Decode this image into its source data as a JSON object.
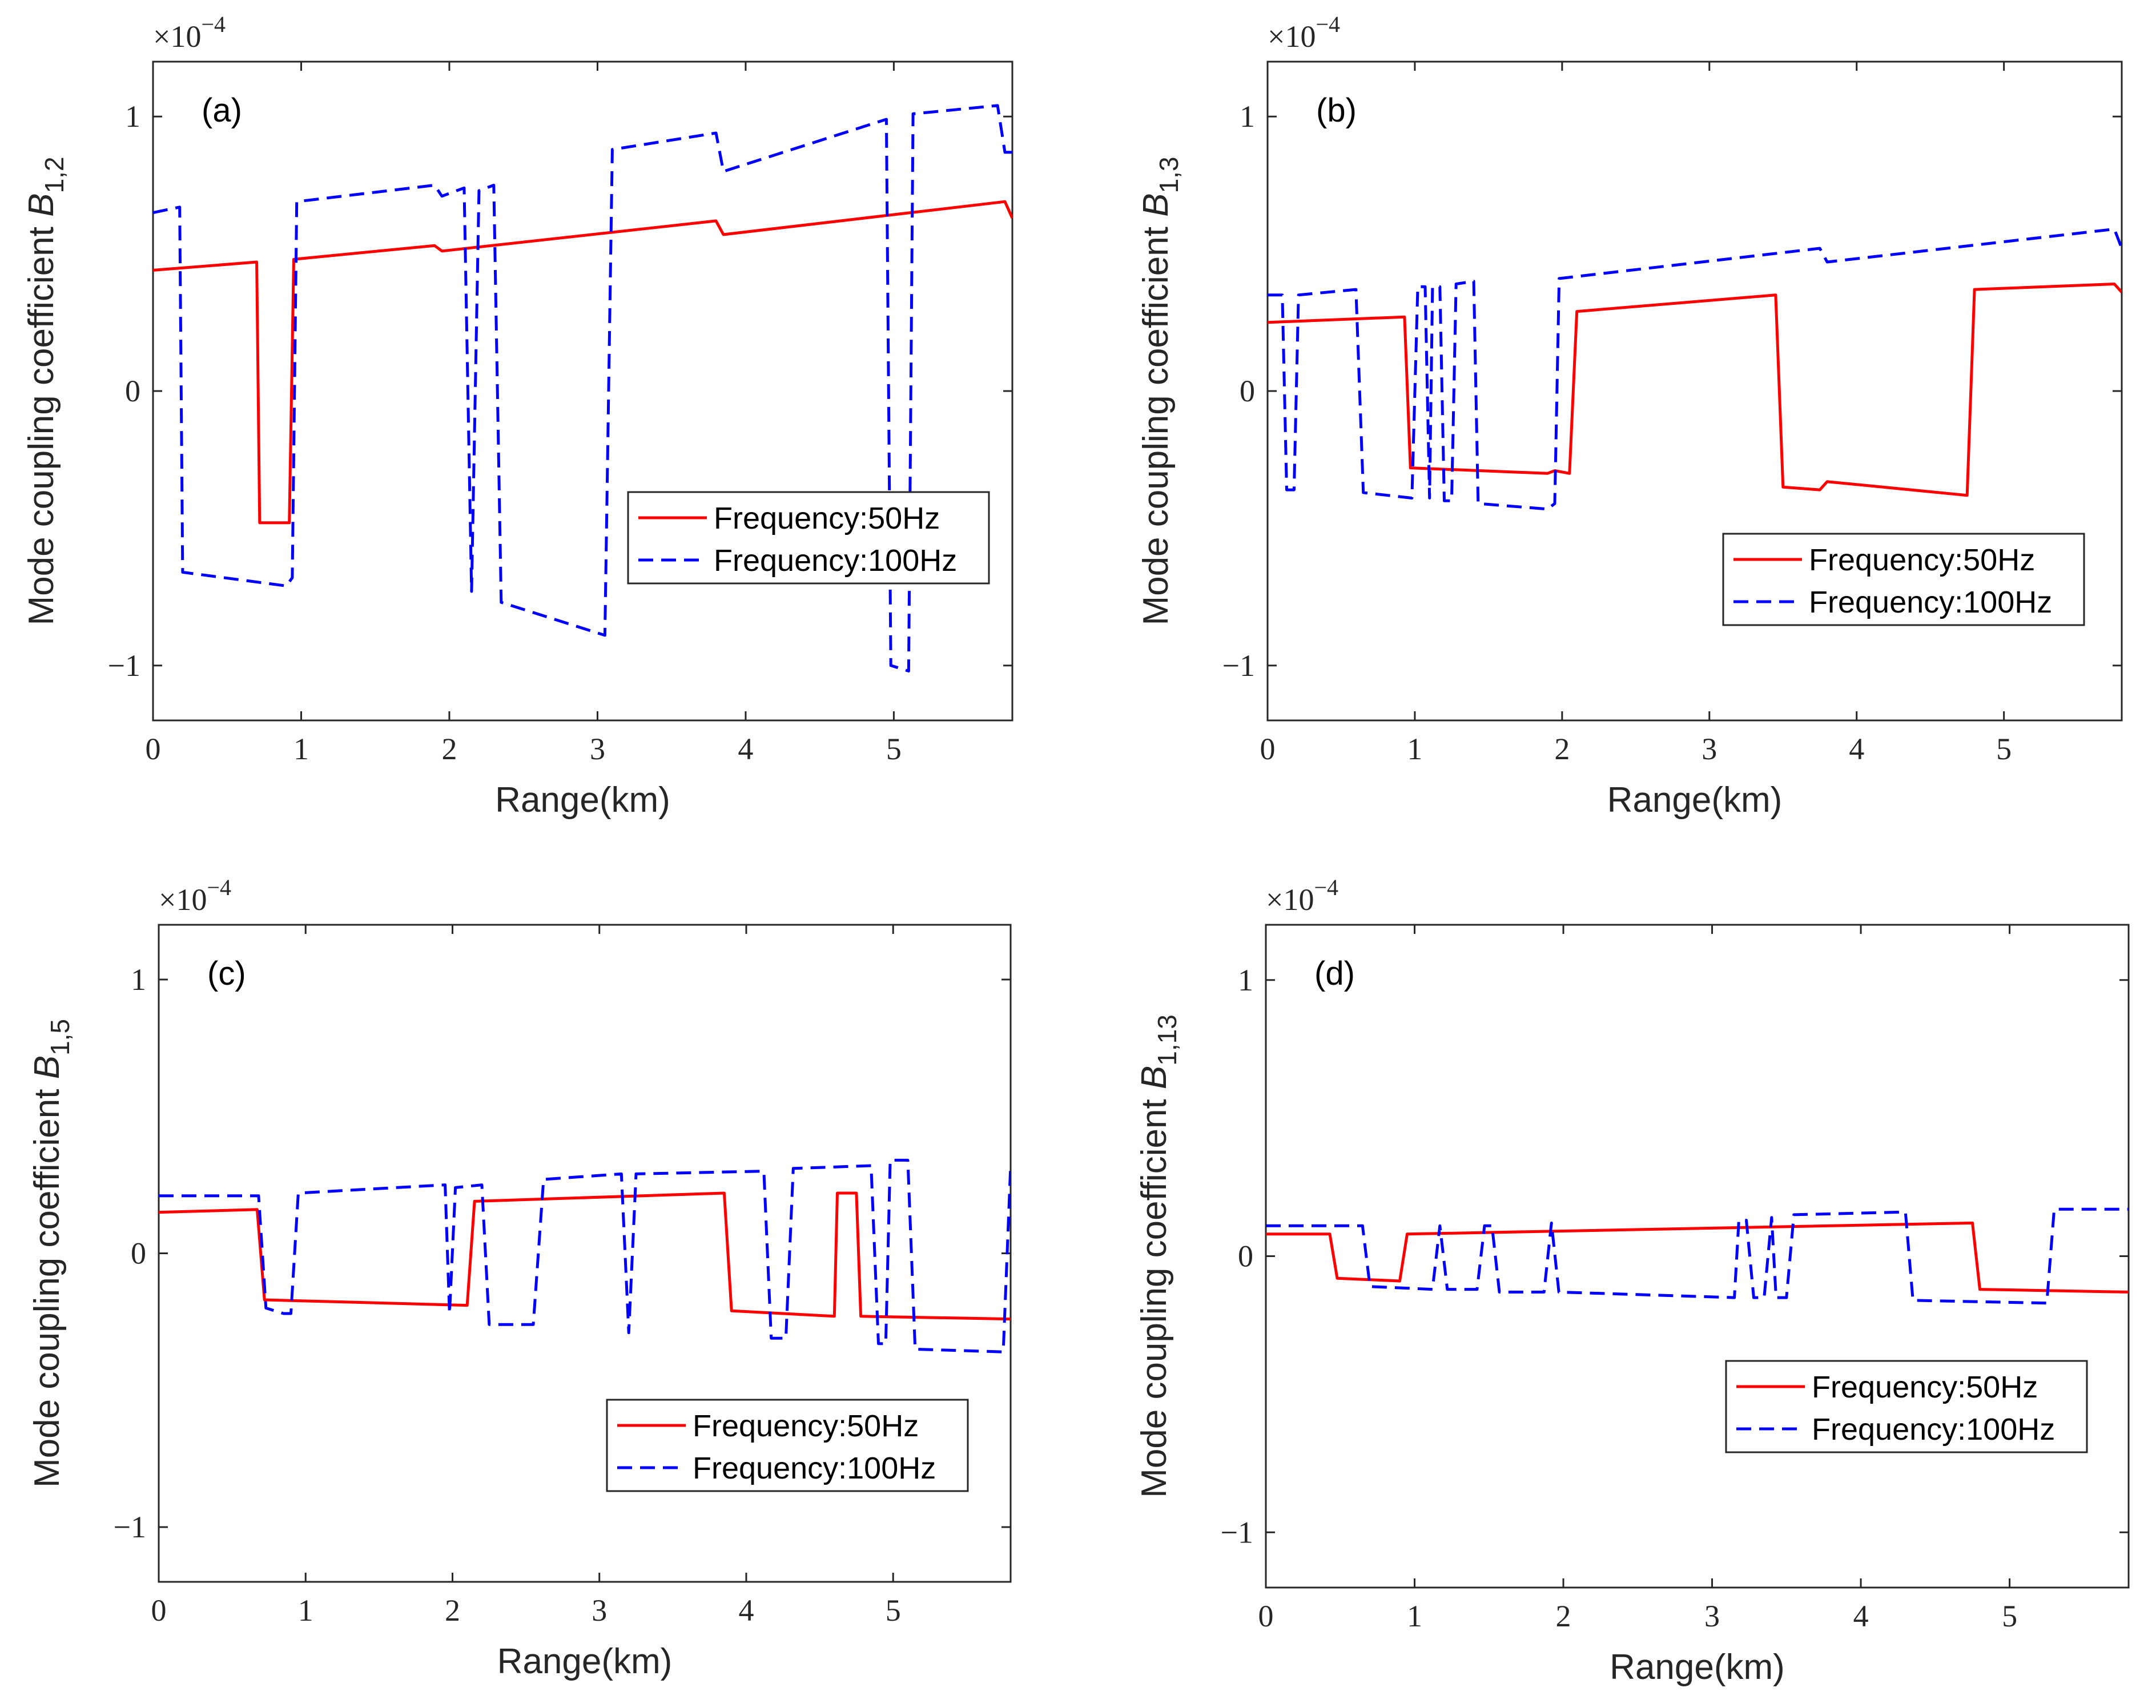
{
  "colors": {
    "series_50": "#ff0000",
    "series_100": "#0000ff"
  },
  "legend": {
    "entry_50": "Frequency:50Hz",
    "entry_100": "Frequency:100Hz"
  },
  "chart_data": [
    {
      "type": "line",
      "panel_label": "(a)",
      "ylabel": "Mode coupling coefficient",
      "ylabel_symbol": "B",
      "ylabel_subscript": "1,2",
      "xlabel": "Range(km)",
      "exponent_base": "×10",
      "exponent_power": "−4",
      "xlim": [
        0,
        5.8
      ],
      "ylim": [
        -1.2,
        1.2
      ],
      "xticks": [
        0,
        1,
        2,
        3,
        4,
        5
      ],
      "xtick_labels": [
        "0",
        "1",
        "2",
        "3",
        "4",
        "5"
      ],
      "yticks": [
        -1,
        0,
        1
      ],
      "ytick_labels": [
        "−1",
        "0",
        "1"
      ],
      "legend_position": "center-right",
      "series": [
        {
          "name": "Frequency:50Hz",
          "style": "solid",
          "points": [
            [
              0,
              0.44
            ],
            [
              0.7,
              0.47
            ],
            [
              0.72,
              -0.48
            ],
            [
              0.92,
              -0.48
            ],
            [
              0.95,
              0.48
            ],
            [
              1.9,
              0.53
            ],
            [
              1.95,
              0.51
            ],
            [
              3.8,
              0.62
            ],
            [
              3.85,
              0.57
            ],
            [
              5.75,
              0.69
            ],
            [
              5.8,
              0.63
            ]
          ]
        },
        {
          "name": "Frequency:100Hz",
          "style": "dashed",
          "points": [
            [
              0,
              0.65
            ],
            [
              0.18,
              0.67
            ],
            [
              0.2,
              -0.66
            ],
            [
              0.9,
              -0.71
            ],
            [
              0.94,
              -0.68
            ],
            [
              0.97,
              0.69
            ],
            [
              1.9,
              0.75
            ],
            [
              1.95,
              0.71
            ],
            [
              2.1,
              0.74
            ],
            [
              2.15,
              -0.73
            ],
            [
              2.2,
              0.73
            ],
            [
              2.3,
              0.75
            ],
            [
              2.35,
              -0.77
            ],
            [
              3.05,
              -0.89
            ],
            [
              3.1,
              0.88
            ],
            [
              3.8,
              0.94
            ],
            [
              3.85,
              0.8
            ],
            [
              4.95,
              0.99
            ],
            [
              4.98,
              -1.0
            ],
            [
              5.1,
              -1.02
            ],
            [
              5.13,
              1.01
            ],
            [
              5.7,
              1.04
            ],
            [
              5.75,
              0.87
            ],
            [
              5.8,
              0.87
            ]
          ]
        }
      ]
    },
    {
      "type": "line",
      "panel_label": "(b)",
      "ylabel": "Mode coupling coefficient",
      "ylabel_symbol": "B",
      "ylabel_subscript": "1,3",
      "xlabel": "Range(km)",
      "exponent_base": "×10",
      "exponent_power": "−4",
      "xlim": [
        0,
        5.8
      ],
      "ylim": [
        -1.2,
        1.2
      ],
      "xticks": [
        0,
        1,
        2,
        3,
        4,
        5
      ],
      "xtick_labels": [
        "0",
        "1",
        "2",
        "3",
        "4",
        "5"
      ],
      "yticks": [
        -1,
        0,
        1
      ],
      "ytick_labels": [
        "−1",
        "0",
        "1"
      ],
      "legend_position": "lower-right",
      "series": [
        {
          "name": "Frequency:50Hz",
          "style": "solid",
          "points": [
            [
              0,
              0.25
            ],
            [
              0.93,
              0.27
            ],
            [
              0.97,
              -0.28
            ],
            [
              1.9,
              -0.3
            ],
            [
              1.95,
              -0.29
            ],
            [
              2.05,
              -0.3
            ],
            [
              2.1,
              0.29
            ],
            [
              3.45,
              0.35
            ],
            [
              3.5,
              -0.35
            ],
            [
              3.75,
              -0.36
            ],
            [
              3.8,
              -0.33
            ],
            [
              4.75,
              -0.38
            ],
            [
              4.8,
              0.37
            ],
            [
              5.75,
              0.39
            ],
            [
              5.8,
              0.36
            ]
          ]
        },
        {
          "name": "Frequency:100Hz",
          "style": "dashed",
          "points": [
            [
              0,
              0.35
            ],
            [
              0.1,
              0.35
            ],
            [
              0.13,
              -0.36
            ],
            [
              0.18,
              -0.36
            ],
            [
              0.21,
              0.35
            ],
            [
              0.6,
              0.37
            ],
            [
              0.65,
              -0.37
            ],
            [
              0.98,
              -0.39
            ],
            [
              1.02,
              0.38
            ],
            [
              1.07,
              0.38
            ],
            [
              1.1,
              -0.39
            ],
            [
              1.12,
              0.38
            ],
            [
              1.17,
              0.38
            ],
            [
              1.2,
              -0.4
            ],
            [
              1.25,
              -0.4
            ],
            [
              1.28,
              0.39
            ],
            [
              1.4,
              0.4
            ],
            [
              1.43,
              -0.41
            ],
            [
              1.9,
              -0.43
            ],
            [
              1.95,
              -0.41
            ],
            [
              1.98,
              0.41
            ],
            [
              3.75,
              0.52
            ],
            [
              3.8,
              0.47
            ],
            [
              5.75,
              0.59
            ],
            [
              5.8,
              0.52
            ]
          ]
        }
      ]
    },
    {
      "type": "line",
      "panel_label": "(c)",
      "ylabel": "Mode coupling coefficient",
      "ylabel_symbol": "B",
      "ylabel_subscript": "1,5",
      "xlabel": "Range(km)",
      "exponent_base": "×10",
      "exponent_power": "−4",
      "xlim": [
        0,
        5.8
      ],
      "ylim": [
        -1.2,
        1.2
      ],
      "xticks": [
        0,
        1,
        2,
        3,
        4,
        5
      ],
      "xtick_labels": [
        "0",
        "1",
        "2",
        "3",
        "4",
        "5"
      ],
      "yticks": [
        -1,
        0,
        1
      ],
      "ytick_labels": [
        "−1",
        "0",
        "1"
      ],
      "legend_position": "lower-right",
      "series": [
        {
          "name": "Frequency:50Hz",
          "style": "solid",
          "points": [
            [
              0,
              0.15
            ],
            [
              0.67,
              0.16
            ],
            [
              0.72,
              -0.17
            ],
            [
              2.1,
              -0.19
            ],
            [
              2.15,
              0.19
            ],
            [
              3.85,
              0.22
            ],
            [
              3.9,
              -0.21
            ],
            [
              4.6,
              -0.23
            ],
            [
              4.62,
              0.22
            ],
            [
              4.75,
              0.22
            ],
            [
              4.78,
              -0.23
            ],
            [
              5.8,
              -0.24
            ]
          ]
        },
        {
          "name": "Frequency:100Hz",
          "style": "dashed",
          "points": [
            [
              0,
              0.21
            ],
            [
              0.68,
              0.21
            ],
            [
              0.73,
              -0.2
            ],
            [
              0.85,
              -0.22
            ],
            [
              0.9,
              -0.22
            ],
            [
              0.95,
              0.22
            ],
            [
              1.95,
              0.25
            ],
            [
              1.98,
              -0.22
            ],
            [
              2.02,
              0.24
            ],
            [
              2.2,
              0.25
            ],
            [
              2.25,
              -0.26
            ],
            [
              2.55,
              -0.26
            ],
            [
              2.62,
              0.27
            ],
            [
              3.15,
              0.29
            ],
            [
              3.2,
              -0.29
            ],
            [
              3.25,
              0.29
            ],
            [
              4.12,
              0.3
            ],
            [
              4.17,
              -0.31
            ],
            [
              4.27,
              -0.31
            ],
            [
              4.32,
              0.31
            ],
            [
              4.85,
              0.32
            ],
            [
              4.9,
              -0.33
            ],
            [
              4.95,
              -0.33
            ],
            [
              4.98,
              0.34
            ],
            [
              5.1,
              0.34
            ],
            [
              5.15,
              -0.35
            ],
            [
              5.75,
              -0.36
            ],
            [
              5.8,
              0.32
            ]
          ]
        }
      ]
    },
    {
      "type": "line",
      "panel_label": "(d)",
      "ylabel": "Mode coupling coefficient",
      "ylabel_symbol": "B",
      "ylabel_subscript": "1,13",
      "xlabel": "Range(km)",
      "exponent_base": "×10",
      "exponent_power": "−4",
      "xlim": [
        0,
        5.8
      ],
      "ylim": [
        -1.2,
        1.2
      ],
      "xticks": [
        0,
        1,
        2,
        3,
        4,
        5
      ],
      "xtick_labels": [
        "0",
        "1",
        "2",
        "3",
        "4",
        "5"
      ],
      "yticks": [
        -1,
        0,
        1
      ],
      "ytick_labels": [
        "−1",
        "0",
        "1"
      ],
      "legend_position": "lower-right",
      "series": [
        {
          "name": "Frequency:50Hz",
          "style": "solid",
          "points": [
            [
              0,
              0.08
            ],
            [
              0.43,
              0.08
            ],
            [
              0.48,
              -0.08
            ],
            [
              0.9,
              -0.09
            ],
            [
              0.95,
              0.08
            ],
            [
              4.75,
              0.12
            ],
            [
              4.8,
              -0.12
            ],
            [
              5.8,
              -0.13
            ]
          ]
        },
        {
          "name": "Frequency:100Hz",
          "style": "dashed",
          "points": [
            [
              0,
              0.11
            ],
            [
              0.65,
              0.11
            ],
            [
              0.7,
              -0.11
            ],
            [
              1.12,
              -0.12
            ],
            [
              1.17,
              0.11
            ],
            [
              1.22,
              -0.12
            ],
            [
              1.42,
              -0.12
            ],
            [
              1.47,
              0.11
            ],
            [
              1.52,
              0.11
            ],
            [
              1.57,
              -0.13
            ],
            [
              1.87,
              -0.13
            ],
            [
              1.92,
              0.12
            ],
            [
              1.97,
              -0.13
            ],
            [
              3.15,
              -0.15
            ],
            [
              3.18,
              0.13
            ],
            [
              3.23,
              0.13
            ],
            [
              3.28,
              -0.15
            ],
            [
              3.35,
              -0.15
            ],
            [
              3.4,
              0.14
            ],
            [
              3.43,
              -0.15
            ],
            [
              3.5,
              -0.15
            ],
            [
              3.55,
              0.15
            ],
            [
              4.3,
              0.16
            ],
            [
              4.35,
              -0.16
            ],
            [
              5.25,
              -0.17
            ],
            [
              5.3,
              0.17
            ],
            [
              5.8,
              0.17
            ]
          ]
        }
      ]
    }
  ]
}
